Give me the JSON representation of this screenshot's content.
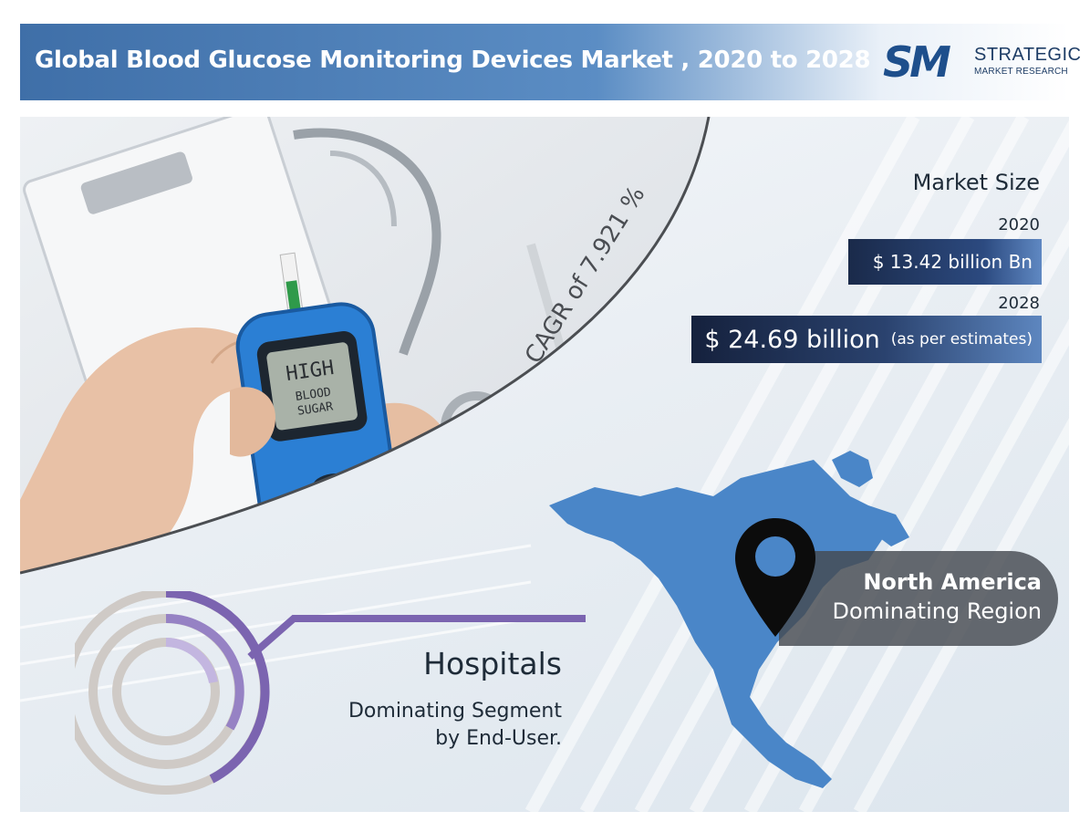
{
  "header": {
    "title": "Global Blood Glucose Monitoring Devices Market , 2020 to 2028",
    "logo": {
      "mark": "SM",
      "line1": "STRATEGIC",
      "line2": "MARKET RESEARCH"
    }
  },
  "photo": {
    "meter_screen_lines": [
      "HIGH",
      "BLOOD",
      "SUGAR"
    ]
  },
  "cagr": "CAGR of 7.921 %",
  "market_size": {
    "title": "Market Size",
    "y2020_label": "2020",
    "y2020_value": "$ 13.42 billion Bn",
    "y2028_label": "2028",
    "y2028_value": "$ 24.69 billion",
    "y2028_note": "(as per estimates)"
  },
  "region": {
    "name": "North America",
    "subtitle": "Dominating Region",
    "icon": "location-pin-icon"
  },
  "segment": {
    "title": "Hospitals",
    "line1": "Dominating Segment",
    "line2": "by End-User."
  },
  "colors": {
    "header_blue": "#3f6fa8",
    "map_blue": "#4a86c8",
    "ring_purple": "#7b64b0",
    "ring_grey": "#cfcac6",
    "value_box_navy": "#1a2a4a"
  }
}
